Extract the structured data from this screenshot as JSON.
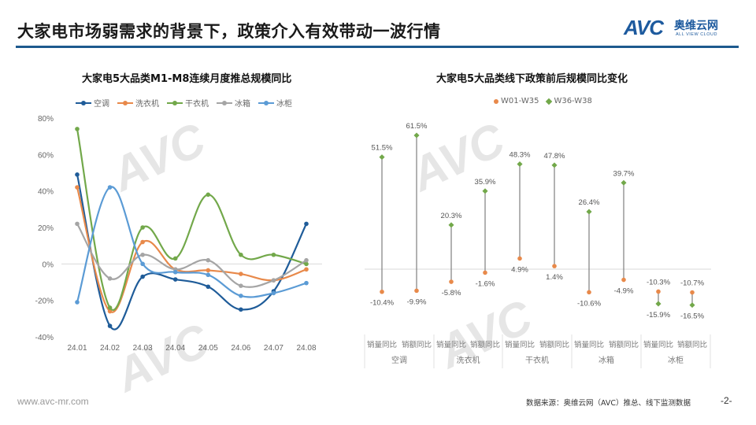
{
  "header": {
    "title": "大家电市场弱需求的背景下，政策介入有效带动一波行情",
    "logo_mark": "AVC",
    "logo_cn": "奥维云网",
    "logo_en": "ALL VIEW CLOUD",
    "accent_color": "#1d5a8e"
  },
  "watermark": {
    "mark": "AVC",
    "cn": "奥维云网",
    "en": "ALL VIEW CLOUD"
  },
  "footer": {
    "url": "www.avc-mr.com",
    "source": "数据来源：奥维云网（AVC）推总、线下监测数据",
    "page": "-2-"
  },
  "chart_data": [
    {
      "type": "line",
      "title": "大家电5大品类M1-M8连续月度推总规模同比",
      "xlabel": "",
      "ylabel": "",
      "categories": [
        "24.01",
        "24.02",
        "24.03",
        "24.04",
        "24.05",
        "24.06",
        "24.07",
        "24.08"
      ],
      "y_ticks": [
        "80%",
        "60%",
        "40%",
        "20%",
        "0%",
        "-20%",
        "-40%"
      ],
      "ylim": [
        -40,
        80
      ],
      "legend_position": "top",
      "grid": false,
      "series": [
        {
          "name": "空调",
          "color": "#1f5c99",
          "values": [
            49,
            -34,
            -7,
            -8.5,
            -12.5,
            -25,
            -15,
            22
          ]
        },
        {
          "name": "洗衣机",
          "color": "#e8894a",
          "values": [
            42,
            -26,
            12,
            -3,
            -3.5,
            -5.5,
            -9,
            -3
          ]
        },
        {
          "name": "干衣机",
          "color": "#72a84a",
          "values": [
            74,
            -24,
            20,
            3,
            38,
            5,
            5,
            0
          ]
        },
        {
          "name": "冰箱",
          "color": "#a5a5a5",
          "values": [
            22,
            -8,
            5,
            -3,
            2,
            -12,
            -9,
            2
          ]
        },
        {
          "name": "冰柜",
          "color": "#5b9bd5",
          "values": [
            -21,
            42,
            0,
            -4.5,
            -6,
            -17.5,
            -16,
            -10.5
          ]
        }
      ]
    },
    {
      "type": "scatter",
      "subtype": "dumbbell",
      "title": "大家电5大品类线下政策前后规模同比变化",
      "legend_position": "top",
      "groups": [
        "空调",
        "洗衣机",
        "干衣机",
        "冰箱",
        "冰柜"
      ],
      "metrics": [
        "销量同比",
        "销额同比"
      ],
      "categories": [
        "销量同比",
        "销额同比",
        "销量同比",
        "销额同比",
        "销量同比",
        "销额同比",
        "销量同比",
        "销额同比",
        "销量同比",
        "销额同比"
      ],
      "series": [
        {
          "name": "W01-W35",
          "color": "#e8894a",
          "marker": "circle",
          "values": [
            -10.4,
            -9.9,
            -5.8,
            -1.6,
            4.9,
            1.4,
            -10.6,
            -4.9,
            -10.3,
            -10.7
          ],
          "labels": [
            "-10.4%",
            "-9.9%",
            "-5.8%",
            "-1.6%",
            "4.9%",
            "1.4%",
            "-10.6%",
            "-4.9%",
            "-10.3%",
            "-10.7%"
          ]
        },
        {
          "name": "W36-W38",
          "color": "#72a84a",
          "marker": "diamond",
          "values": [
            51.5,
            61.5,
            20.3,
            35.9,
            48.3,
            47.8,
            26.4,
            39.7,
            -15.9,
            -16.5
          ],
          "labels": [
            "51.5%",
            "61.5%",
            "20.3%",
            "35.9%",
            "48.3%",
            "47.8%",
            "26.4%",
            "39.7%",
            "-15.9%",
            "-16.5%"
          ]
        }
      ]
    }
  ]
}
